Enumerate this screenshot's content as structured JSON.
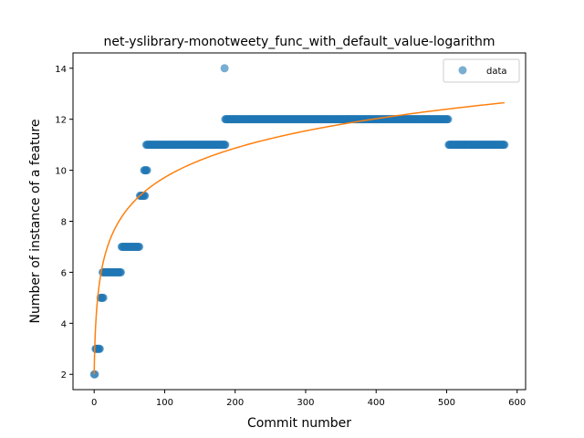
{
  "chart_data": {
    "type": "scatter",
    "title": "net-yslibrary-monotweety_func_with_default_value-logarithm",
    "xlabel": "Commit number",
    "ylabel": "Number of instance of a feature",
    "xlim": [
      -30,
      612
    ],
    "ylim": [
      1.4,
      14.6
    ],
    "xticks": [
      0,
      100,
      200,
      300,
      400,
      500,
      600
    ],
    "yticks": [
      2,
      4,
      6,
      8,
      10,
      12,
      14
    ],
    "legend": {
      "entries": [
        "data"
      ],
      "placement": "upper right"
    },
    "grid": false,
    "colors": {
      "data": "#1f77b4",
      "fit": "#ff7f0e"
    },
    "series": [
      {
        "name": "data",
        "kind": "scatter",
        "segments": [
          {
            "x_start": 0,
            "x_end": 1,
            "y": 2
          },
          {
            "x_start": 2,
            "x_end": 8,
            "y": 3
          },
          {
            "x_start": 9,
            "x_end": 13,
            "y": 5
          },
          {
            "x_start": 12,
            "x_end": 38,
            "y": 6
          },
          {
            "x_start": 39,
            "x_end": 64,
            "y": 7
          },
          {
            "x_start": 65,
            "x_end": 72,
            "y": 9
          },
          {
            "x_start": 71,
            "x_end": 75,
            "y": 10
          },
          {
            "x_start": 74,
            "x_end": 186,
            "y": 11
          },
          {
            "x_start": 185,
            "x_end": 185,
            "y": 14
          },
          {
            "x_start": 186,
            "x_end": 502,
            "y": 12
          },
          {
            "x_start": 503,
            "x_end": 582,
            "y": 11
          }
        ]
      },
      {
        "name": "",
        "kind": "line",
        "model": "a + b*ln(x+1)",
        "params": {
          "a": 2.0,
          "b": 1.672
        },
        "x_range": [
          0,
          582
        ]
      }
    ]
  }
}
